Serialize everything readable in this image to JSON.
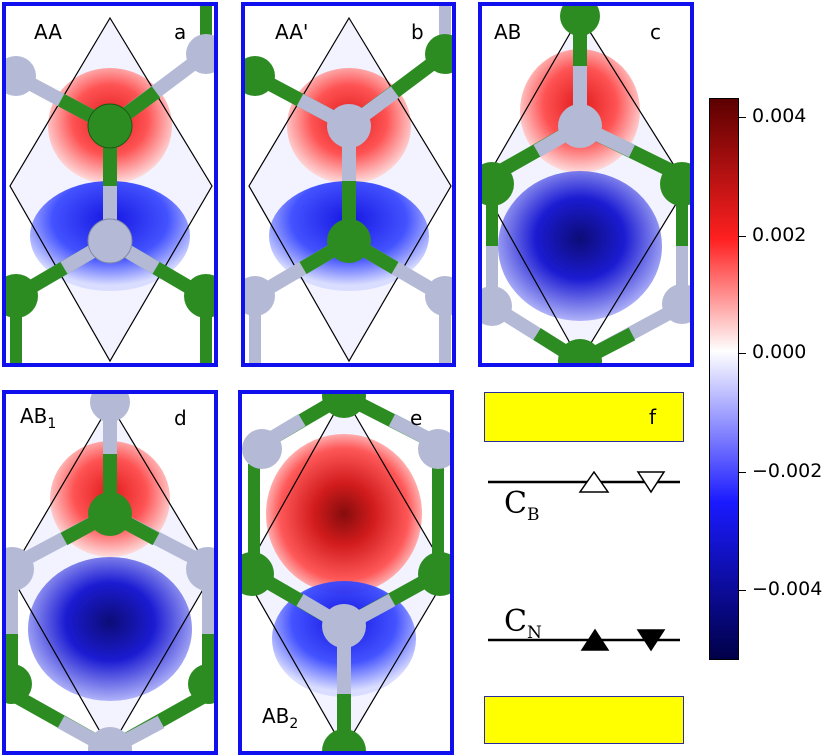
{
  "panels": [
    {
      "id": "a",
      "stacking": "AA",
      "stacking_sub": "",
      "letter": "a"
    },
    {
      "id": "b",
      "stacking": "AA'",
      "stacking_sub": "",
      "letter": "b"
    },
    {
      "id": "c",
      "stacking": "AB",
      "stacking_sub": "",
      "letter": "c"
    },
    {
      "id": "d",
      "stacking": "AB",
      "stacking_sub": "1",
      "letter": "d"
    },
    {
      "id": "e",
      "stacking": "AB",
      "stacking_sub": "2",
      "letter": "e"
    }
  ],
  "legend": {
    "letter": "f",
    "cb_label": "C",
    "cb_sub": "B",
    "cn_label": "C",
    "cn_sub": "N"
  },
  "colorbar": {
    "ticks": [
      "0.004",
      "0.002",
      "0.000",
      "−0.002",
      "−0.004"
    ],
    "colors": {
      "max": "#5c0000",
      "pos": "#ff2020",
      "zero": "#ffffff",
      "neg": "#1a1aff",
      "min": "#000048"
    }
  },
  "colors": {
    "frame": "#1010ee",
    "boron_atom": "#b4b9d6",
    "nitrogen_atom": "#2c8c22",
    "highlight": "#ffff00"
  }
}
